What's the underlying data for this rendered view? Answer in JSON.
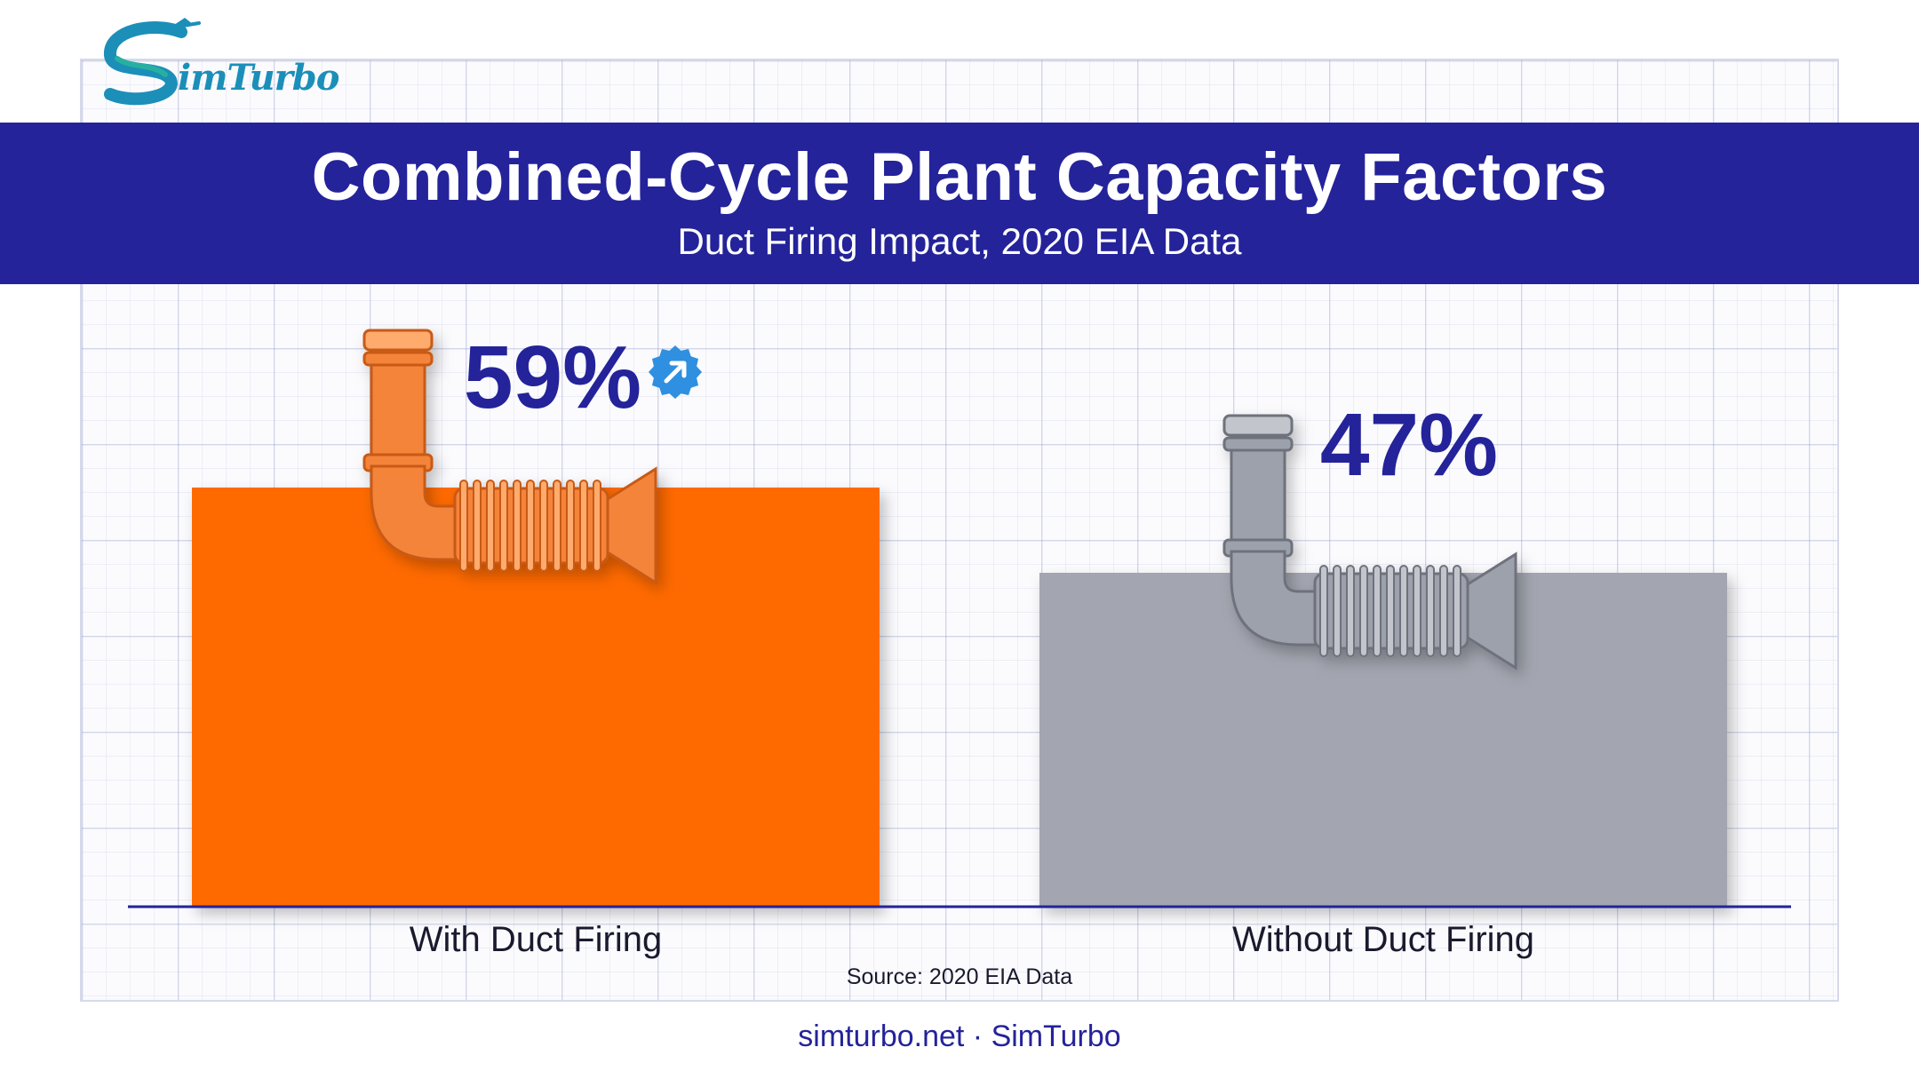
{
  "brand": {
    "logo_text": "imTurbo",
    "logo_letter": "S"
  },
  "header": {
    "title": "Combined-Cycle Plant Capacity Factors",
    "subtitle": "Duct Firing Impact, 2020 EIA Data"
  },
  "chart_data": {
    "type": "bar",
    "title": "Combined-Cycle Plant Capacity Factors",
    "subtitle": "Duct Firing Impact, 2020 EIA Data",
    "categories": [
      "With Duct Firing",
      "Without Duct Firing"
    ],
    "values": [
      59,
      47
    ],
    "value_labels": [
      "59%",
      "47%"
    ],
    "unit": "%",
    "xlabel": "",
    "ylabel": "",
    "ylim": [
      0,
      100
    ],
    "grid": true,
    "legend": "none",
    "colors": [
      "#ff6a00",
      "#a3a6b0"
    ]
  },
  "source": "Source: 2020 EIA Data",
  "footer": "simturbo.net · SimTurbo",
  "colors": {
    "banner": "#24239a",
    "accent": "#ff6a00",
    "neutral": "#a3a6b0",
    "value_text": "#24239a",
    "badge": "#2f8fe0"
  },
  "icons": [
    "elbow-duct-icon",
    "trending-up-badge-icon"
  ]
}
